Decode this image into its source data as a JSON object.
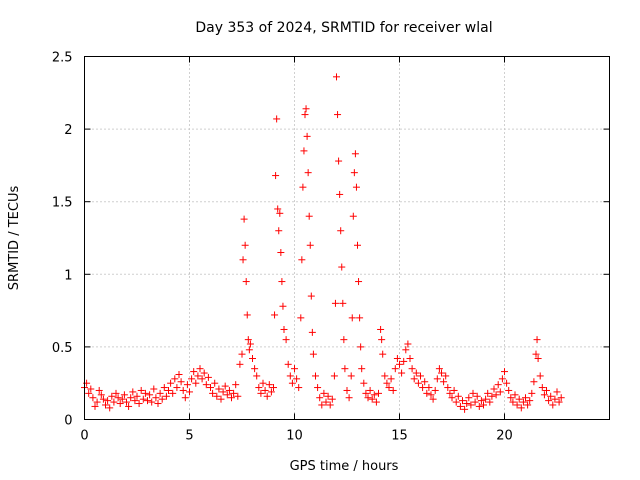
{
  "chart_data": {
    "type": "scatter",
    "title": "Day 353 of 2024, SRMTID for receiver wlal",
    "xlabel": "GPS time / hours",
    "ylabel": "SRMTID / TECUs",
    "xlim": [
      0,
      25
    ],
    "ylim": [
      0,
      2.5
    ],
    "xticks": [
      0,
      5,
      10,
      15,
      20
    ],
    "xtick_labels": [
      "0",
      "5",
      "10",
      "15",
      "20"
    ],
    "yticks": [
      0,
      0.5,
      1,
      1.5,
      2,
      2.5
    ],
    "ytick_labels": [
      "0",
      "0.5",
      "1",
      "1.5",
      "2",
      "2.5"
    ],
    "grid": true,
    "marker": "+",
    "color": "#ff0000",
    "series": [
      {
        "name": "wlal",
        "points": [
          [
            0.0,
            0.22
          ],
          [
            0.1,
            0.25
          ],
          [
            0.2,
            0.18
          ],
          [
            0.3,
            0.21
          ],
          [
            0.4,
            0.15
          ],
          [
            0.5,
            0.09
          ],
          [
            0.6,
            0.12
          ],
          [
            0.7,
            0.2
          ],
          [
            0.8,
            0.17
          ],
          [
            0.9,
            0.14
          ],
          [
            1.0,
            0.1
          ],
          [
            1.1,
            0.13
          ],
          [
            1.2,
            0.08
          ],
          [
            1.3,
            0.16
          ],
          [
            1.4,
            0.12
          ],
          [
            1.5,
            0.18
          ],
          [
            1.6,
            0.15
          ],
          [
            1.7,
            0.11
          ],
          [
            1.8,
            0.14
          ],
          [
            1.9,
            0.17
          ],
          [
            2.0,
            0.12
          ],
          [
            2.1,
            0.09
          ],
          [
            2.2,
            0.15
          ],
          [
            2.3,
            0.19
          ],
          [
            2.4,
            0.13
          ],
          [
            2.5,
            0.16
          ],
          [
            2.6,
            0.11
          ],
          [
            2.7,
            0.2
          ],
          [
            2.8,
            0.14
          ],
          [
            2.9,
            0.18
          ],
          [
            3.0,
            0.13
          ],
          [
            3.1,
            0.17
          ],
          [
            3.2,
            0.12
          ],
          [
            3.3,
            0.21
          ],
          [
            3.4,
            0.15
          ],
          [
            3.5,
            0.11
          ],
          [
            3.6,
            0.18
          ],
          [
            3.7,
            0.14
          ],
          [
            3.8,
            0.22
          ],
          [
            3.9,
            0.16
          ],
          [
            4.0,
            0.2
          ],
          [
            4.1,
            0.25
          ],
          [
            4.2,
            0.18
          ],
          [
            4.3,
            0.28
          ],
          [
            4.4,
            0.22
          ],
          [
            4.5,
            0.31
          ],
          [
            4.6,
            0.26
          ],
          [
            4.7,
            0.2
          ],
          [
            4.8,
            0.15
          ],
          [
            4.9,
            0.24
          ],
          [
            5.0,
            0.19
          ],
          [
            5.1,
            0.28
          ],
          [
            5.2,
            0.33
          ],
          [
            5.3,
            0.25
          ],
          [
            5.4,
            0.3
          ],
          [
            5.5,
            0.35
          ],
          [
            5.6,
            0.28
          ],
          [
            5.7,
            0.32
          ],
          [
            5.8,
            0.24
          ],
          [
            5.9,
            0.29
          ],
          [
            6.0,
            0.22
          ],
          [
            6.1,
            0.18
          ],
          [
            6.2,
            0.25
          ],
          [
            6.3,
            0.16
          ],
          [
            6.4,
            0.21
          ],
          [
            6.5,
            0.14
          ],
          [
            6.6,
            0.19
          ],
          [
            6.7,
            0.23
          ],
          [
            6.8,
            0.17
          ],
          [
            6.9,
            0.2
          ],
          [
            7.0,
            0.15
          ],
          [
            7.1,
            0.18
          ],
          [
            7.2,
            0.24
          ],
          [
            7.3,
            0.16
          ],
          [
            7.4,
            0.38
          ],
          [
            7.5,
            0.45
          ],
          [
            7.55,
            1.1
          ],
          [
            7.6,
            1.38
          ],
          [
            7.65,
            1.2
          ],
          [
            7.7,
            0.95
          ],
          [
            7.75,
            0.72
          ],
          [
            7.8,
            0.55
          ],
          [
            7.85,
            0.48
          ],
          [
            7.9,
            0.52
          ],
          [
            8.0,
            0.42
          ],
          [
            8.1,
            0.35
          ],
          [
            8.2,
            0.3
          ],
          [
            8.3,
            0.22
          ],
          [
            8.4,
            0.18
          ],
          [
            8.5,
            0.25
          ],
          [
            8.6,
            0.2
          ],
          [
            8.7,
            0.16
          ],
          [
            8.8,
            0.24
          ],
          [
            8.9,
            0.19
          ],
          [
            9.0,
            0.22
          ],
          [
            9.05,
            0.72
          ],
          [
            9.1,
            1.68
          ],
          [
            9.15,
            2.07
          ],
          [
            9.2,
            1.45
          ],
          [
            9.25,
            1.3
          ],
          [
            9.3,
            1.42
          ],
          [
            9.35,
            1.15
          ],
          [
            9.4,
            0.95
          ],
          [
            9.45,
            0.78
          ],
          [
            9.5,
            0.62
          ],
          [
            9.6,
            0.55
          ],
          [
            9.7,
            0.38
          ],
          [
            9.8,
            0.3
          ],
          [
            9.9,
            0.25
          ],
          [
            10.0,
            0.35
          ],
          [
            10.1,
            0.28
          ],
          [
            10.2,
            0.22
          ],
          [
            10.3,
            0.7
          ],
          [
            10.35,
            1.1
          ],
          [
            10.4,
            1.6
          ],
          [
            10.45,
            1.85
          ],
          [
            10.5,
            2.1
          ],
          [
            10.55,
            2.14
          ],
          [
            10.6,
            1.95
          ],
          [
            10.65,
            1.7
          ],
          [
            10.7,
            1.4
          ],
          [
            10.75,
            1.2
          ],
          [
            10.8,
            0.85
          ],
          [
            10.85,
            0.6
          ],
          [
            10.9,
            0.45
          ],
          [
            11.0,
            0.3
          ],
          [
            11.1,
            0.22
          ],
          [
            11.2,
            0.15
          ],
          [
            11.3,
            0.1
          ],
          [
            11.4,
            0.18
          ],
          [
            11.5,
            0.12
          ],
          [
            11.6,
            0.16
          ],
          [
            11.7,
            0.1
          ],
          [
            11.8,
            0.14
          ],
          [
            11.9,
            0.3
          ],
          [
            11.95,
            0.8
          ],
          [
            12.0,
            2.36
          ],
          [
            12.05,
            2.1
          ],
          [
            12.1,
            1.78
          ],
          [
            12.15,
            1.55
          ],
          [
            12.2,
            1.3
          ],
          [
            12.25,
            1.05
          ],
          [
            12.3,
            0.8
          ],
          [
            12.35,
            0.55
          ],
          [
            12.4,
            0.35
          ],
          [
            12.5,
            0.2
          ],
          [
            12.6,
            0.15
          ],
          [
            12.7,
            0.3
          ],
          [
            12.75,
            0.7
          ],
          [
            12.8,
            1.4
          ],
          [
            12.85,
            1.7
          ],
          [
            12.9,
            1.83
          ],
          [
            12.95,
            1.6
          ],
          [
            13.0,
            1.2
          ],
          [
            13.05,
            0.95
          ],
          [
            13.1,
            0.7
          ],
          [
            13.15,
            0.5
          ],
          [
            13.2,
            0.35
          ],
          [
            13.3,
            0.25
          ],
          [
            13.4,
            0.18
          ],
          [
            13.5,
            0.15
          ],
          [
            13.6,
            0.2
          ],
          [
            13.7,
            0.14
          ],
          [
            13.8,
            0.17
          ],
          [
            13.9,
            0.12
          ],
          [
            14.0,
            0.18
          ],
          [
            14.1,
            0.62
          ],
          [
            14.15,
            0.55
          ],
          [
            14.2,
            0.45
          ],
          [
            14.3,
            0.3
          ],
          [
            14.4,
            0.25
          ],
          [
            14.5,
            0.22
          ],
          [
            14.6,
            0.28
          ],
          [
            14.7,
            0.2
          ],
          [
            14.8,
            0.35
          ],
          [
            14.9,
            0.42
          ],
          [
            15.0,
            0.38
          ],
          [
            15.1,
            0.32
          ],
          [
            15.2,
            0.4
          ],
          [
            15.3,
            0.48
          ],
          [
            15.4,
            0.52
          ],
          [
            15.5,
            0.42
          ],
          [
            15.6,
            0.35
          ],
          [
            15.7,
            0.28
          ],
          [
            15.8,
            0.32
          ],
          [
            15.9,
            0.25
          ],
          [
            16.0,
            0.3
          ],
          [
            16.1,
            0.22
          ],
          [
            16.2,
            0.26
          ],
          [
            16.3,
            0.18
          ],
          [
            16.4,
            0.22
          ],
          [
            16.5,
            0.17
          ],
          [
            16.6,
            0.14
          ],
          [
            16.7,
            0.2
          ],
          [
            16.8,
            0.28
          ],
          [
            16.9,
            0.35
          ],
          [
            17.0,
            0.32
          ],
          [
            17.1,
            0.26
          ],
          [
            17.2,
            0.3
          ],
          [
            17.3,
            0.22
          ],
          [
            17.4,
            0.18
          ],
          [
            17.5,
            0.15
          ],
          [
            17.6,
            0.2
          ],
          [
            17.7,
            0.12
          ],
          [
            17.8,
            0.16
          ],
          [
            17.9,
            0.09
          ],
          [
            18.0,
            0.13
          ],
          [
            18.1,
            0.07
          ],
          [
            18.2,
            0.11
          ],
          [
            18.3,
            0.15
          ],
          [
            18.4,
            0.1
          ],
          [
            18.5,
            0.18
          ],
          [
            18.6,
            0.12
          ],
          [
            18.7,
            0.16
          ],
          [
            18.8,
            0.09
          ],
          [
            18.9,
            0.13
          ],
          [
            19.0,
            0.1
          ],
          [
            19.1,
            0.14
          ],
          [
            19.2,
            0.18
          ],
          [
            19.3,
            0.12
          ],
          [
            19.4,
            0.16
          ],
          [
            19.5,
            0.21
          ],
          [
            19.6,
            0.17
          ],
          [
            19.7,
            0.24
          ],
          [
            19.8,
            0.19
          ],
          [
            19.9,
            0.28
          ],
          [
            20.0,
            0.33
          ],
          [
            20.1,
            0.25
          ],
          [
            20.2,
            0.2
          ],
          [
            20.3,
            0.15
          ],
          [
            20.4,
            0.12
          ],
          [
            20.5,
            0.17
          ],
          [
            20.6,
            0.1
          ],
          [
            20.7,
            0.14
          ],
          [
            20.8,
            0.08
          ],
          [
            20.9,
            0.12
          ],
          [
            21.0,
            0.15
          ],
          [
            21.1,
            0.1
          ],
          [
            21.2,
            0.13
          ],
          [
            21.3,
            0.18
          ],
          [
            21.4,
            0.26
          ],
          [
            21.5,
            0.45
          ],
          [
            21.55,
            0.55
          ],
          [
            21.6,
            0.42
          ],
          [
            21.7,
            0.3
          ],
          [
            21.8,
            0.22
          ],
          [
            21.9,
            0.17
          ],
          [
            22.0,
            0.2
          ],
          [
            22.1,
            0.13
          ],
          [
            22.2,
            0.16
          ],
          [
            22.3,
            0.1
          ],
          [
            22.4,
            0.14
          ],
          [
            22.5,
            0.19
          ],
          [
            22.6,
            0.12
          ],
          [
            22.7,
            0.15
          ]
        ]
      }
    ]
  }
}
